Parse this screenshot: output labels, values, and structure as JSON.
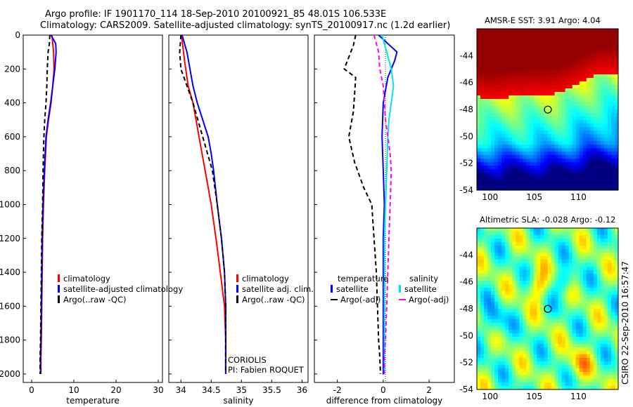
{
  "header": {
    "line1": "Argo profile: IF 1901170_114 18-Sep-2010 20100921_85 48.01S 106.533E",
    "line2": "Climatology: CARS2009. Satellite-adjusted climatology: synTS_20100917.nc (1.2d earlier)"
  },
  "colors": {
    "climatology": "#ff0000",
    "satellite": "#0000ff",
    "argo": "#000000",
    "satellite_diff_sal": "#00e5e5",
    "argo_diff_sal": "#ff00ff"
  },
  "chart_data": [
    {
      "type": "line",
      "xlabel": "temperature",
      "ylabel": "",
      "xlim": [
        -2,
        31
      ],
      "ylim": [
        2050,
        0
      ],
      "xticks": [
        "0",
        "10",
        "20",
        "30"
      ],
      "xtick_values": [
        0,
        10,
        20,
        30
      ],
      "yticks": [
        "0",
        "200",
        "400",
        "600",
        "800",
        "1000",
        "1200",
        "1400",
        "1600",
        "1800",
        "2000"
      ],
      "ytick_values": [
        0,
        200,
        400,
        600,
        800,
        1000,
        1200,
        1400,
        1600,
        1800,
        2000
      ],
      "legend": [
        "climatology",
        "satellite-adjusted climatology",
        "Argo(..raw -QC)"
      ],
      "series": [
        {
          "name": "climatology",
          "x": [
            4.8,
            5.0,
            5.2,
            5.3,
            5.0,
            4.6,
            4.0,
            3.5,
            3.1,
            2.8,
            2.6,
            2.5,
            2.4,
            2.3,
            2.2,
            2.2
          ],
          "y": [
            0,
            50,
            100,
            200,
            300,
            400,
            500,
            600,
            800,
            1000,
            1200,
            1400,
            1600,
            1800,
            1900,
            2000
          ]
        },
        {
          "name": "satellite-adjusted climatology",
          "x": [
            4.6,
            5.7,
            5.8,
            5.5,
            5.0,
            4.5,
            3.9,
            3.4,
            3.0,
            2.7,
            2.5,
            2.4,
            2.3,
            2.2,
            2.1,
            2.1
          ],
          "y": [
            0,
            50,
            100,
            200,
            300,
            400,
            500,
            600,
            800,
            1000,
            1200,
            1400,
            1600,
            1800,
            1900,
            2000
          ]
        },
        {
          "name": "Argo(..raw -QC)",
          "x": [
            4.3,
            4.2,
            3.9,
            3.7,
            3.6,
            3.4,
            3.1,
            2.9,
            2.7,
            2.6,
            2.4,
            2.3,
            2.2,
            2.1,
            2.0,
            2.0
          ],
          "y": [
            0,
            50,
            100,
            200,
            300,
            400,
            500,
            600,
            800,
            1000,
            1200,
            1400,
            1600,
            1800,
            1900,
            2000
          ]
        }
      ]
    },
    {
      "type": "line",
      "xlabel": "salinity",
      "ylabel": "",
      "xlim": [
        33.8,
        36.1
      ],
      "ylim": [
        2050,
        0
      ],
      "xticks": [
        "34",
        "34.5",
        "35",
        "35.5",
        "36"
      ],
      "xtick_values": [
        34,
        34.5,
        35,
        35.5,
        36
      ],
      "legend": [
        "climatology",
        "satellite adj. clim.",
        "Argo(..raw -QC)"
      ],
      "annotation": [
        "CORIOLIS",
        "PI: Fabien ROQUET"
      ],
      "series": [
        {
          "name": "climatology",
          "x": [
            34.01,
            34.03,
            34.06,
            34.12,
            34.2,
            34.25,
            34.3,
            34.35,
            34.4,
            34.45,
            34.5,
            34.58,
            34.65,
            34.72,
            34.74,
            34.74
          ],
          "y": [
            0,
            60,
            150,
            300,
            400,
            500,
            600,
            700,
            800,
            900,
            1000,
            1200,
            1400,
            1600,
            1800,
            2000
          ]
        },
        {
          "name": "satellite adj. clim.",
          "x": [
            34.02,
            34.1,
            34.15,
            34.2,
            34.27,
            34.36,
            34.45,
            34.5,
            34.54,
            34.6,
            34.67,
            34.72,
            34.74,
            34.74
          ],
          "y": [
            0,
            100,
            200,
            300,
            400,
            500,
            600,
            700,
            800,
            1000,
            1200,
            1400,
            1600,
            2000
          ]
        },
        {
          "name": "Argo(..raw -QC)",
          "x": [
            34.0,
            33.98,
            34.0,
            34.1,
            34.2,
            34.28,
            34.36,
            34.44,
            34.52,
            34.6,
            34.67,
            34.72,
            34.74,
            34.74
          ],
          "y": [
            0,
            100,
            200,
            300,
            400,
            500,
            600,
            700,
            800,
            1000,
            1200,
            1400,
            1600,
            2000
          ]
        }
      ]
    },
    {
      "type": "line",
      "xlabel": "difference from climatology",
      "ylabel": "",
      "xlim": [
        -3,
        3.1
      ],
      "ylim": [
        2050,
        0
      ],
      "xticks": [
        "-2",
        "0",
        "2"
      ],
      "xtick_values": [
        -2,
        0,
        2
      ],
      "legend_groups": [
        {
          "title": "temperature",
          "items": [
            "satellite",
            "Argo(-adj)"
          ]
        },
        {
          "title": "salinity",
          "items": [
            "satellite",
            "Argo(-adj)"
          ]
        }
      ],
      "series": [
        {
          "name": "temperature satellite",
          "x": [
            -0.2,
            0.2,
            0.6,
            0.5,
            0.2,
            0.0,
            -0.05,
            0.0,
            0.05,
            0.0,
            0.0,
            0.0,
            0.0,
            0.0,
            0.0,
            0.0
          ],
          "y": [
            0,
            50,
            100,
            150,
            250,
            400,
            600,
            800,
            1000,
            1200,
            1400,
            1600,
            1800,
            1900,
            2000,
            1950
          ]
        },
        {
          "name": "temperature Argo(-adj)",
          "x": [
            -1.2,
            -1.3,
            -1.7,
            -1.2,
            -1.3,
            -1.5,
            -1.25,
            -0.85,
            -0.5,
            -0.4,
            -0.3,
            -0.25,
            -0.2,
            -0.15,
            -0.12
          ],
          "y": [
            0,
            60,
            200,
            250,
            450,
            600,
            750,
            900,
            1000,
            1200,
            1400,
            1600,
            1800,
            1900,
            2000
          ]
        },
        {
          "name": "salinity satellite",
          "x": [
            -0.05,
            0.15,
            0.35,
            0.45,
            0.35,
            0.25,
            0.2,
            0.15,
            0.1,
            0.05,
            0.05,
            0.05,
            0.05
          ],
          "y": [
            0,
            100,
            200,
            300,
            400,
            500,
            600,
            800,
            1000,
            1200,
            1400,
            1800,
            2000
          ]
        },
        {
          "name": "salinity Argo(-adj)",
          "x": [
            -0.4,
            -0.2,
            -0.15,
            0.0,
            0.05,
            0.1,
            0.3,
            0.35,
            0.3,
            0.25,
            0.2,
            0.15,
            0.1,
            0.05,
            0.05
          ],
          "y": [
            0,
            100,
            200,
            300,
            400,
            500,
            700,
            800,
            1000,
            1200,
            1400,
            1600,
            1800,
            1900,
            2000
          ]
        }
      ]
    },
    {
      "type": "heatmap",
      "title": "AMSR-E SST: 3.91 Argo: 4.04",
      "xlim": [
        98.5,
        114.5
      ],
      "ylim": [
        -54,
        -42
      ],
      "xticks": [
        "100",
        "105",
        "110"
      ],
      "xtick_values": [
        100,
        105,
        110
      ],
      "yticks": [
        "-44",
        "-46",
        "-48",
        "-50",
        "-52",
        "-54"
      ],
      "ytick_values": [
        -44,
        -46,
        -48,
        -50,
        -52,
        -54
      ],
      "marker": {
        "lon": 106.533,
        "lat": -48.01
      }
    },
    {
      "type": "heatmap",
      "title": "Altimetric SLA: -0.028 Argo: -0.12",
      "xlim": [
        98.5,
        114.5
      ],
      "ylim": [
        -54,
        -42
      ],
      "xticks": [
        "100",
        "105",
        "110"
      ],
      "xtick_values": [
        100,
        105,
        110
      ],
      "yticks": [
        "-44",
        "-46",
        "-48",
        "-50",
        "-52",
        "-54"
      ],
      "ytick_values": [
        -44,
        -46,
        -48,
        -50,
        -52,
        -54
      ],
      "marker": {
        "lon": 106.533,
        "lat": -48.01
      }
    }
  ],
  "side_label": "CSIRO 22-Sep-2010 16:57:47"
}
